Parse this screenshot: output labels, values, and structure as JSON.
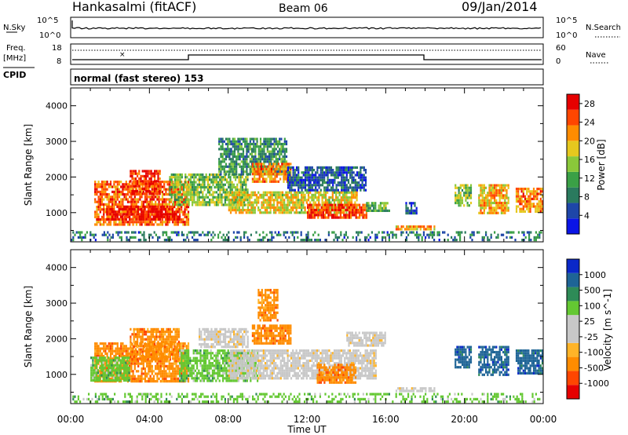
{
  "header": {
    "title": "Hankasalmi (fitACF)",
    "beam": "Beam 06",
    "date": "09/Jan/2014"
  },
  "nsky_panel": {
    "left_label": "N.Sky",
    "right_label": "N.Search",
    "left_ticks": [
      "10^5",
      "10^0"
    ],
    "right_ticks": [
      "10^5",
      "10^0"
    ]
  },
  "freq_panel": {
    "left_label_line1": "Freq.",
    "left_label_line2": "[MHz]",
    "right_label": "Nave",
    "left_ticks": [
      "18",
      "8"
    ],
    "right_ticks": [
      "60",
      "0"
    ]
  },
  "cpid": {
    "label": "CPID",
    "text": "normal (fast stereo) 153"
  },
  "colors": {
    "power_scale": [
      "#0a14e6",
      "#1e46a8",
      "#2a7a5e",
      "#3aa046",
      "#8ac83a",
      "#e6c81e",
      "#ff8c00",
      "#ff4600",
      "#e60000"
    ],
    "velocity_scale": [
      "#e60000",
      "#ff4600",
      "#ff8c00",
      "#ffb428",
      "#c8c8c8",
      "#c8c8c8",
      "#64c832",
      "#2e8b57",
      "#1e6496",
      "#0a28c8"
    ]
  },
  "chart_data": [
    {
      "type": "heatmap",
      "title": "",
      "xlabel": "",
      "ylabel": "Slant Range [km]",
      "xlim": [
        0,
        24
      ],
      "ylim": [
        180,
        4500
      ],
      "xticks": [
        "00:00",
        "04:00",
        "08:00",
        "12:00",
        "16:00",
        "20:00",
        "00:00"
      ],
      "yticks": [
        1000,
        2000,
        3000,
        4000
      ],
      "colorbar": {
        "label": "Power [dB]",
        "ticks": [
          "4",
          "8",
          "12",
          "16",
          "20",
          "24",
          "28"
        ],
        "range": [
          0,
          30
        ]
      },
      "regions": [
        {
          "t0": 1.2,
          "t1": 6.0,
          "r0": 700,
          "r1": 1900,
          "value": 24
        },
        {
          "t0": 1.8,
          "t1": 5.5,
          "r0": 800,
          "r1": 1200,
          "value": 28
        },
        {
          "t0": 3.0,
          "t1": 4.5,
          "r0": 1500,
          "r1": 2200,
          "value": 26
        },
        {
          "t0": 5.0,
          "t1": 9.0,
          "r0": 1200,
          "r1": 2100,
          "value": 14
        },
        {
          "t0": 7.5,
          "t1": 11.0,
          "r0": 2100,
          "r1": 3100,
          "value": 10
        },
        {
          "t0": 9.2,
          "t1": 11.2,
          "r0": 1900,
          "r1": 2400,
          "value": 22
        },
        {
          "t0": 8.0,
          "t1": 14.5,
          "r0": 1000,
          "r1": 1600,
          "value": 18
        },
        {
          "t0": 12.0,
          "t1": 15.0,
          "r0": 850,
          "r1": 1250,
          "value": 26
        },
        {
          "t0": 11.0,
          "t1": 15.0,
          "r0": 1600,
          "r1": 2300,
          "value": 6
        },
        {
          "t0": 15.0,
          "t1": 16.2,
          "r0": 1050,
          "r1": 1300,
          "value": 12
        },
        {
          "t0": 16.5,
          "t1": 18.5,
          "r0": 520,
          "r1": 640,
          "value": 21
        },
        {
          "t0": 17.0,
          "t1": 17.6,
          "r0": 1000,
          "r1": 1300,
          "value": 5
        },
        {
          "t0": 19.5,
          "t1": 20.3,
          "r0": 1200,
          "r1": 1800,
          "value": 14
        },
        {
          "t0": 20.7,
          "t1": 22.2,
          "r0": 1000,
          "r1": 1800,
          "value": 20
        },
        {
          "t0": 22.6,
          "t1": 24.0,
          "r0": 1000,
          "r1": 1700,
          "value": 22
        },
        {
          "t0": 0.0,
          "t1": 24.0,
          "r0": 200,
          "r1": 480,
          "value": 8
        }
      ]
    },
    {
      "type": "heatmap",
      "title": "",
      "xlabel": "Time UT",
      "ylabel": "Slant Range [km]",
      "xlim": [
        0,
        24
      ],
      "ylim": [
        180,
        4500
      ],
      "xticks": [
        "00:00",
        "04:00",
        "08:00",
        "12:00",
        "16:00",
        "20:00",
        "00:00"
      ],
      "yticks": [
        1000,
        2000,
        3000,
        4000
      ],
      "colorbar": {
        "label": "Velocity [m s^-1]",
        "ticks": [
          "1000",
          "500",
          "100",
          "25",
          "-25",
          "-100",
          "-500",
          "-1000"
        ]
      },
      "regions": [
        {
          "t0": 1.2,
          "t1": 6.0,
          "r0": 800,
          "r1": 1900,
          "value": "-100"
        },
        {
          "t0": 1.0,
          "t1": 3.0,
          "r0": 800,
          "r1": 1500,
          "value": "100"
        },
        {
          "t0": 3.0,
          "t1": 5.5,
          "r0": 1400,
          "r1": 2300,
          "value": "-500"
        },
        {
          "t0": 5.5,
          "t1": 9.5,
          "r0": 800,
          "r1": 1700,
          "value": "100"
        },
        {
          "t0": 6.5,
          "t1": 9.0,
          "r0": 1800,
          "r1": 2300,
          "value": "-25"
        },
        {
          "t0": 9.2,
          "t1": 11.2,
          "r0": 1900,
          "r1": 2400,
          "value": "-500"
        },
        {
          "t0": 9.5,
          "t1": 10.5,
          "r0": 2500,
          "r1": 3400,
          "value": "-500"
        },
        {
          "t0": 8.0,
          "t1": 15.5,
          "r0": 900,
          "r1": 1700,
          "value": "0"
        },
        {
          "t0": 12.5,
          "t1": 14.5,
          "r0": 800,
          "r1": 1300,
          "value": "-100"
        },
        {
          "t0": 14.0,
          "t1": 16.0,
          "r0": 1800,
          "r1": 2200,
          "value": "0"
        },
        {
          "t0": 16.5,
          "t1": 18.5,
          "r0": 520,
          "r1": 640,
          "value": "0"
        },
        {
          "t0": 19.5,
          "t1": 20.3,
          "r0": 1200,
          "r1": 1800,
          "value": "500"
        },
        {
          "t0": 20.7,
          "t1": 22.2,
          "r0": 1000,
          "r1": 1800,
          "value": "500"
        },
        {
          "t0": 22.6,
          "t1": 24.0,
          "r0": 1000,
          "r1": 1700,
          "value": "500"
        },
        {
          "t0": 0.0,
          "t1": 24.0,
          "r0": 200,
          "r1": 480,
          "value": "100"
        }
      ]
    }
  ]
}
